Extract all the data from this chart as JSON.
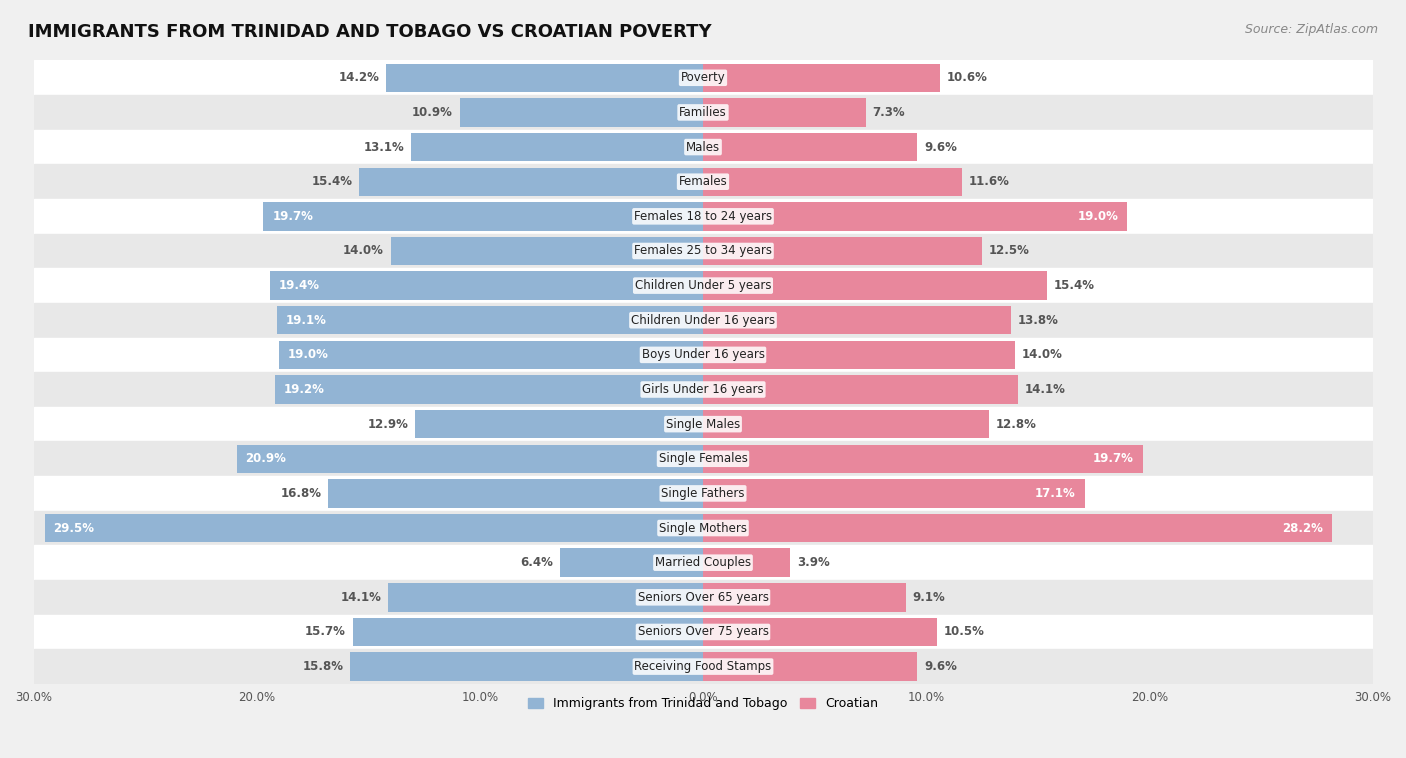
{
  "title": "IMMIGRANTS FROM TRINIDAD AND TOBAGO VS CROATIAN POVERTY",
  "source": "Source: ZipAtlas.com",
  "categories": [
    "Poverty",
    "Families",
    "Males",
    "Females",
    "Females 18 to 24 years",
    "Females 25 to 34 years",
    "Children Under 5 years",
    "Children Under 16 years",
    "Boys Under 16 years",
    "Girls Under 16 years",
    "Single Males",
    "Single Females",
    "Single Fathers",
    "Single Mothers",
    "Married Couples",
    "Seniors Over 65 years",
    "Seniors Over 75 years",
    "Receiving Food Stamps"
  ],
  "left_values": [
    14.2,
    10.9,
    13.1,
    15.4,
    19.7,
    14.0,
    19.4,
    19.1,
    19.0,
    19.2,
    12.9,
    20.9,
    16.8,
    29.5,
    6.4,
    14.1,
    15.7,
    15.8
  ],
  "right_values": [
    10.6,
    7.3,
    9.6,
    11.6,
    19.0,
    12.5,
    15.4,
    13.8,
    14.0,
    14.1,
    12.8,
    19.7,
    17.1,
    28.2,
    3.9,
    9.1,
    10.5,
    9.6
  ],
  "left_color": "#92b4d4",
  "right_color": "#e8879c",
  "left_label": "Immigrants from Trinidad and Tobago",
  "right_label": "Croatian",
  "label_color_high": "#ffffff",
  "label_color_low": "#555555",
  "high_threshold": 17.0,
  "x_max": 30.0,
  "background_color": "#f0f0f0",
  "row_bg_colors": [
    "#ffffff",
    "#e8e8e8"
  ],
  "title_fontsize": 13,
  "source_fontsize": 9,
  "bar_label_fontsize": 8.5,
  "category_fontsize": 8.5
}
